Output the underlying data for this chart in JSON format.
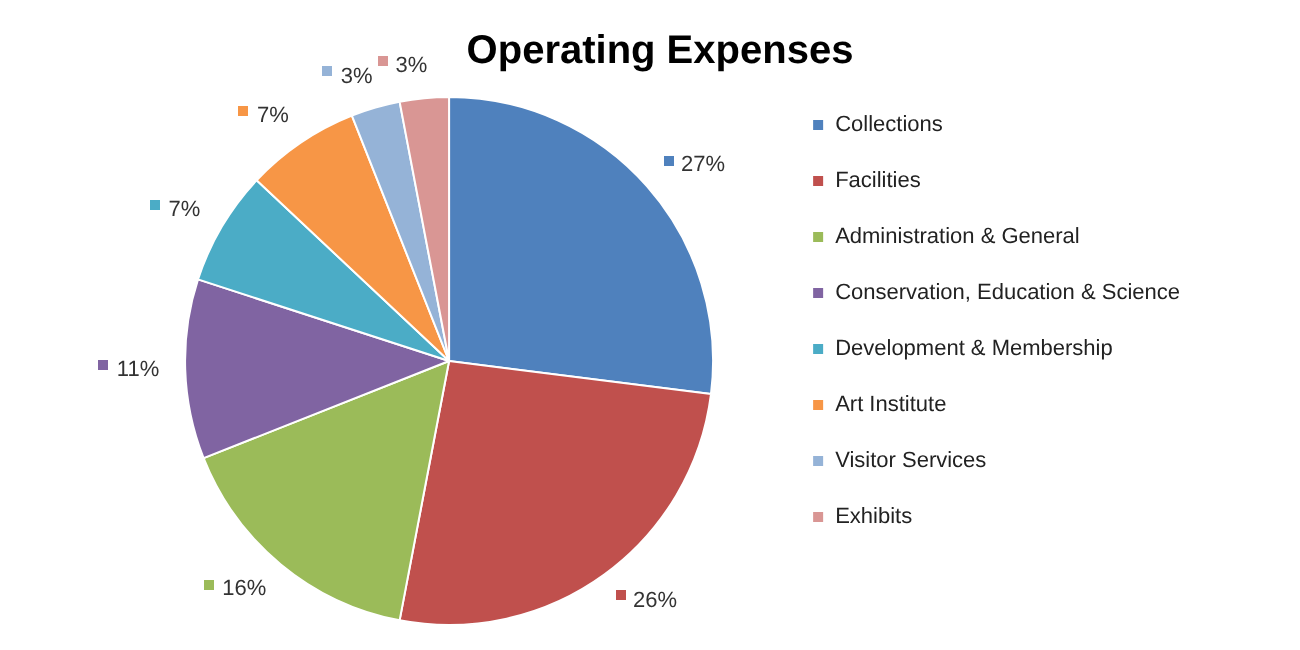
{
  "chart_data": {
    "type": "pie",
    "title": "Operating Expenses",
    "categories": [
      "Collections",
      "Facilities",
      "Administration & General",
      "Conservation, Education & Science",
      "Development & Membership",
      "Art Institute",
      "Visitor Services",
      "Exhibits"
    ],
    "values": [
      27,
      26,
      16,
      11,
      7,
      7,
      3,
      3
    ],
    "value_labels": [
      "27%",
      "26%",
      "16%",
      "11%",
      "7%",
      "7%",
      "3%",
      "3%"
    ],
    "colors": [
      "#4f81bd",
      "#c0504d",
      "#9bbb59",
      "#8064a2",
      "#4bacc6",
      "#f79646",
      "#95b3d7",
      "#d99694"
    ],
    "legend": "right"
  }
}
